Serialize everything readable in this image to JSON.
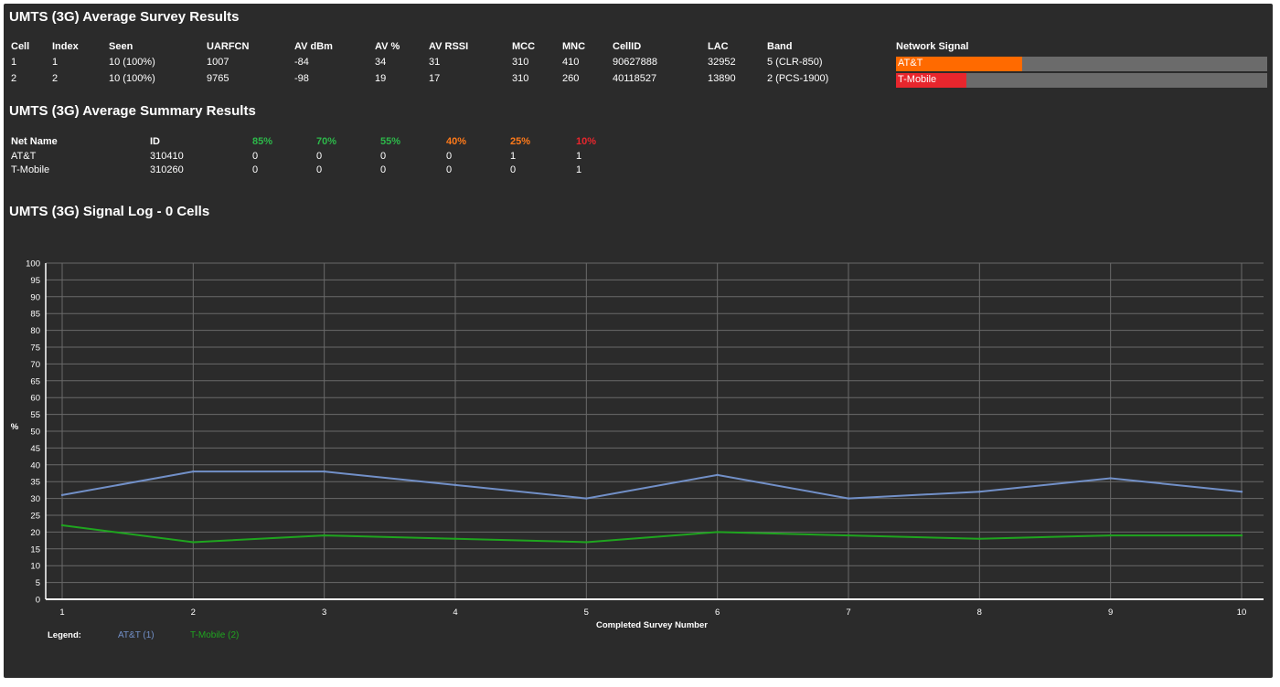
{
  "survey": {
    "title": "UMTS (3G) Average Survey Results",
    "headers": [
      "Cell",
      "Index",
      "Seen",
      "UARFCN",
      "AV dBm",
      "AV %",
      "AV RSSI",
      "MCC",
      "MNC",
      "CellID",
      "LAC",
      "Band",
      "Network Signal"
    ],
    "rows": [
      [
        "1",
        "1",
        "10 (100%)",
        "1007",
        "-84",
        "34",
        "31",
        "310",
        "410",
        "90627888",
        "32952",
        "5 (CLR-850)"
      ],
      [
        "2",
        "2",
        "10 (100%)",
        "9765",
        "-98",
        "19",
        "17",
        "310",
        "260",
        "40118527",
        "13890",
        "2 (PCS-1900)"
      ]
    ],
    "signals": [
      {
        "label": "AT&T",
        "fraction": 0.34,
        "color": "#ff6a00"
      },
      {
        "label": "T-Mobile",
        "fraction": 0.19,
        "color": "#e8262d"
      }
    ]
  },
  "summary": {
    "title": "UMTS (3G) Average Summary Results",
    "headers": [
      {
        "text": "Net Name",
        "color": "#ffffff"
      },
      {
        "text": "ID",
        "color": "#ffffff"
      },
      {
        "text": "85%",
        "color": "#2db84a"
      },
      {
        "text": "70%",
        "color": "#2db84a"
      },
      {
        "text": "55%",
        "color": "#2db84a"
      },
      {
        "text": "40%",
        "color": "#ff7a1a"
      },
      {
        "text": "25%",
        "color": "#ff7a1a"
      },
      {
        "text": "10%",
        "color": "#e8262d"
      }
    ],
    "rows": [
      [
        "AT&T",
        "310410",
        "0",
        "0",
        "0",
        "0",
        "1",
        "1"
      ],
      [
        "T-Mobile",
        "310260",
        "0",
        "0",
        "0",
        "0",
        "0",
        "1"
      ]
    ]
  },
  "log": {
    "title": "UMTS (3G) Signal Log - 0 Cells"
  },
  "chart_data": {
    "type": "line",
    "xlabel": "Completed Survey Number",
    "ylabel": "%",
    "x": [
      1,
      2,
      3,
      4,
      5,
      6,
      7,
      8,
      9,
      10
    ],
    "ylim": [
      0,
      100
    ],
    "yticks": [
      0,
      5,
      10,
      15,
      20,
      25,
      30,
      35,
      40,
      45,
      50,
      55,
      60,
      65,
      70,
      75,
      80,
      85,
      90,
      95,
      100
    ],
    "grid": true,
    "legend_title": "Legend:",
    "legend_position": "bottom-left",
    "series": [
      {
        "name": "AT&T (1)",
        "color": "#7290c8",
        "values": [
          31,
          38,
          38,
          34,
          30,
          37,
          30,
          32,
          36,
          32
        ]
      },
      {
        "name": "T-Mobile (2)",
        "color": "#1fa51f",
        "values": [
          22,
          17,
          19,
          18,
          17,
          20,
          19,
          18,
          19,
          19
        ]
      }
    ]
  }
}
